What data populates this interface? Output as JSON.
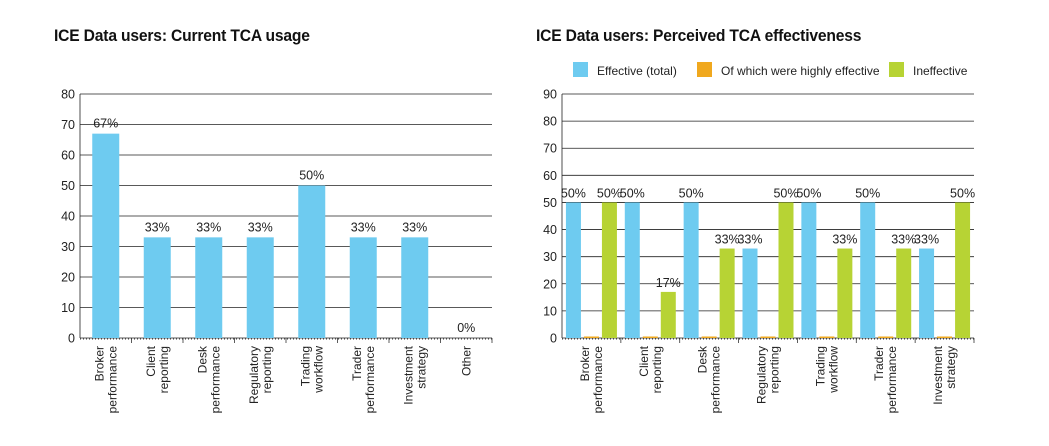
{
  "chart_data": [
    {
      "type": "bar",
      "title": "ICE Data users: Current TCA usage",
      "categories": [
        [
          "Broker",
          "performance"
        ],
        [
          "Client",
          "reporting"
        ],
        [
          "Desk",
          "performance"
        ],
        [
          "Regulatory",
          "reporting"
        ],
        [
          "Trading",
          "workflow"
        ],
        [
          "Trader",
          "performance"
        ],
        [
          "Investment",
          "strategy"
        ],
        [
          "Other"
        ]
      ],
      "series": [
        {
          "values": [
            67,
            33,
            33,
            33,
            50,
            33,
            33,
            0
          ],
          "labels": [
            "67%",
            "33%",
            "33%",
            "33%",
            "50%",
            "33%",
            "33%",
            "0%"
          ]
        }
      ],
      "yticks": [
        0,
        10,
        20,
        30,
        40,
        50,
        60,
        70,
        80
      ],
      "ylim": [
        0,
        80
      ],
      "grid": true
    },
    {
      "type": "bar",
      "title": "ICE Data users: Perceived TCA effectiveness",
      "categories": [
        [
          "Broker",
          "performance"
        ],
        [
          "Client",
          "reporting"
        ],
        [
          "Desk",
          "performance"
        ],
        [
          "Regulatory",
          "reporting"
        ],
        [
          "Trading",
          "workflow"
        ],
        [
          "Trader",
          "performance"
        ],
        [
          "Investment",
          "strategy"
        ]
      ],
      "series": [
        {
          "name": "Effective (total)",
          "values": [
            50,
            50,
            50,
            33,
            50,
            50,
            33
          ],
          "labels": [
            "50%",
            "50%",
            "50%",
            "33%",
            "50%",
            "50%",
            "33%"
          ]
        },
        {
          "name": "Of which were highly effective",
          "values": [
            0,
            0,
            0,
            0,
            0,
            0,
            0
          ],
          "labels": [
            "",
            "",
            "",
            "",
            "",
            "",
            ""
          ]
        },
        {
          "name": "Ineffective",
          "values": [
            50,
            17,
            33,
            50,
            33,
            33,
            50
          ],
          "labels": [
            "50%",
            "17%",
            "33%",
            "50%",
            "33%",
            "33%",
            "50%"
          ]
        }
      ],
      "yticks": [
        0,
        10,
        20,
        30,
        40,
        50,
        60,
        70,
        80,
        90
      ],
      "ylim": [
        0,
        90
      ],
      "grid": true,
      "legend_position": "top"
    }
  ],
  "colors": {
    "effective": "#6ecbf0",
    "highly": "#f0a81e",
    "ineffective": "#b7d334",
    "grid": "#222222"
  }
}
